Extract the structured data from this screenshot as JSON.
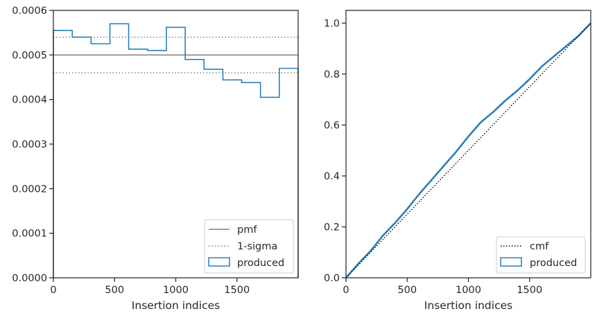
{
  "colors": {
    "produced": "#2a7fb5",
    "pmf": "#7f7f7f",
    "sigma": "#7f7f7f",
    "cmf": "#000000",
    "axes": "#262626"
  },
  "chart_data": [
    {
      "type": "histogram",
      "xlabel": "Insertion indices",
      "ylabel": "",
      "xlim": [
        0,
        2000
      ],
      "ylim": [
        0,
        0.0006
      ],
      "x_ticks": [
        0,
        500,
        1000,
        1500
      ],
      "x_tick_labels": [
        "0",
        "500",
        "1000",
        "1500"
      ],
      "y_ticks": [
        0,
        0.0001,
        0.0002,
        0.0003,
        0.0004,
        0.0005,
        0.0006
      ],
      "y_tick_labels": [
        "0.0000",
        "0.0001",
        "0.0002",
        "0.0003",
        "0.0004",
        "0.0005",
        "0.0006"
      ],
      "grid": false,
      "legend_position": "lower right",
      "series": [
        {
          "name": "produced",
          "style": "step",
          "bin_edges": [
            0,
            154,
            308,
            462,
            615,
            769,
            923,
            1077,
            1231,
            1385,
            1538,
            1692,
            1846,
            2000
          ],
          "values": [
            0.000555,
            0.00054,
            0.000525,
            0.00057,
            0.000513,
            0.00051,
            0.000562,
            0.00049,
            0.000468,
            0.000444,
            0.000438,
            0.000405,
            0.00047
          ]
        },
        {
          "name": "pmf",
          "style": "solid-hline",
          "y": 0.0005
        },
        {
          "name": "1-sigma",
          "style": "dotted-hline",
          "y": [
            0.00054,
            0.00046
          ]
        }
      ],
      "legend": [
        "pmf",
        "1-sigma",
        "produced"
      ]
    },
    {
      "type": "line",
      "xlabel": "Insertion indices",
      "ylabel": "",
      "xlim": [
        0,
        2000
      ],
      "ylim": [
        0,
        1.05
      ],
      "x_ticks": [
        0,
        500,
        1000,
        1500
      ],
      "x_tick_labels": [
        "0",
        "500",
        "1000",
        "1500"
      ],
      "y_ticks": [
        0,
        0.2,
        0.4,
        0.6,
        0.8,
        1.0
      ],
      "y_tick_labels": [
        "0.0",
        "0.2",
        "0.4",
        "0.6",
        "0.8",
        "1.0"
      ],
      "grid": false,
      "legend_position": "lower right",
      "series": [
        {
          "name": "cmf",
          "style": "dotted",
          "x": [
            0,
            2000
          ],
          "y": [
            0,
            1.0
          ]
        },
        {
          "name": "produced",
          "style": "solid",
          "x": [
            0,
            100,
            200,
            300,
            400,
            500,
            600,
            700,
            800,
            900,
            1000,
            1100,
            1200,
            1300,
            1400,
            1500,
            1600,
            1700,
            1800,
            1900,
            2000
          ],
          "y": [
            0,
            0.055,
            0.105,
            0.165,
            0.215,
            0.27,
            0.33,
            0.385,
            0.44,
            0.495,
            0.555,
            0.61,
            0.65,
            0.695,
            0.735,
            0.78,
            0.83,
            0.87,
            0.91,
            0.95,
            1.0
          ]
        }
      ],
      "legend": [
        "cmf",
        "produced"
      ]
    }
  ]
}
